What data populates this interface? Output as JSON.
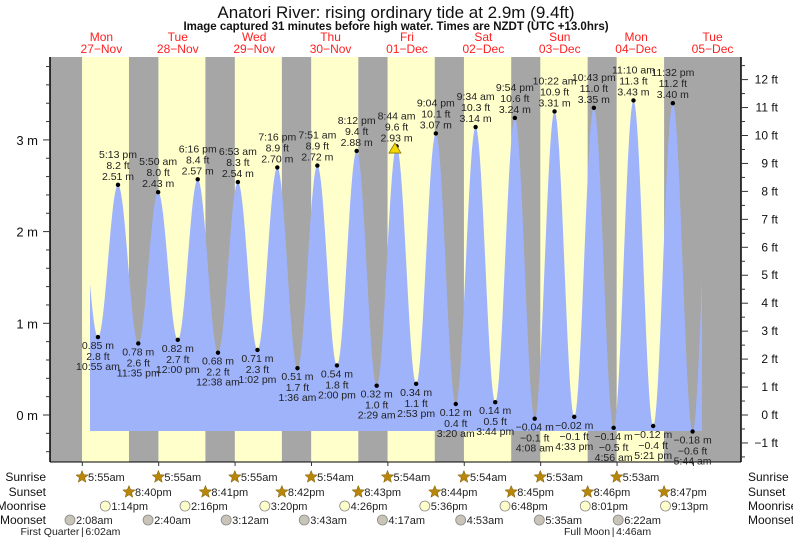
{
  "chart_data": {
    "type": "area",
    "title": "Anatori River: rising  ordinary tide at 2.9m (9.4ft)",
    "subtitle": "Image captured 31 minutes before high water. Times are NZDT (UTC +13.0hrs)",
    "left_axis": {
      "unit": "m",
      "ticks": [
        "0 m",
        "1 m",
        "2 m",
        "3 m"
      ],
      "range_m": [
        -0.5,
        3.9
      ]
    },
    "right_axis": {
      "unit": "ft",
      "ticks": [
        "−1 ft",
        "0 ft",
        "1 ft",
        "2 ft",
        "3 ft",
        "4 ft",
        "5 ft",
        "6 ft",
        "7 ft",
        "8 ft",
        "9 ft",
        "10 ft",
        "11 ft",
        "12 ft"
      ]
    },
    "days": [
      {
        "dow": "Mon",
        "date": "27−Nov"
      },
      {
        "dow": "Tue",
        "date": "28−Nov"
      },
      {
        "dow": "Wed",
        "date": "29−Nov"
      },
      {
        "dow": "Thu",
        "date": "30−Nov"
      },
      {
        "dow": "Fri",
        "date": "01−Dec"
      },
      {
        "dow": "Sat",
        "date": "02−Dec"
      },
      {
        "dow": "Sun",
        "date": "03−Dec"
      },
      {
        "dow": "Mon",
        "date": "04−Dec"
      },
      {
        "dow": "Tue",
        "date": "05−Dec"
      }
    ],
    "tides": [
      {
        "day": 0,
        "time": "10:55 am",
        "type": "low",
        "m": "0.85 m",
        "ft": "2.8 ft",
        "value": 0.85
      },
      {
        "day": 0,
        "time": "5:13 pm",
        "type": "high",
        "m": "2.51 m",
        "ft": "8.2 ft",
        "value": 2.51
      },
      {
        "day": 0,
        "time": "11:35 pm",
        "type": "low",
        "m": "0.78 m",
        "ft": "2.6 ft",
        "value": 0.78
      },
      {
        "day": 1,
        "time": "5:50 am",
        "type": "high",
        "m": "2.43 m",
        "ft": "8.0 ft",
        "value": 2.43
      },
      {
        "day": 1,
        "time": "12:00 pm",
        "type": "low",
        "m": "0.82 m",
        "ft": "2.7 ft",
        "value": 0.82
      },
      {
        "day": 1,
        "time": "6:16 pm",
        "type": "high",
        "m": "2.57 m",
        "ft": "8.4 ft",
        "value": 2.57
      },
      {
        "day": 2,
        "time": "12:38 am",
        "type": "low",
        "m": "0.68 m",
        "ft": "2.2 ft",
        "value": 0.68
      },
      {
        "day": 2,
        "time": "6:53 am",
        "type": "high",
        "m": "2.54 m",
        "ft": "8.3 ft",
        "value": 2.54
      },
      {
        "day": 2,
        "time": "1:02 pm",
        "type": "low",
        "m": "0.71 m",
        "ft": "2.3 ft",
        "value": 0.71
      },
      {
        "day": 2,
        "time": "7:16 pm",
        "type": "high",
        "m": "2.70 m",
        "ft": "8.9 ft",
        "value": 2.7
      },
      {
        "day": 3,
        "time": "1:36 am",
        "type": "low",
        "m": "0.51 m",
        "ft": "1.7 ft",
        "value": 0.51
      },
      {
        "day": 3,
        "time": "7:51 am",
        "type": "high",
        "m": "2.72 m",
        "ft": "8.9 ft",
        "value": 2.72
      },
      {
        "day": 3,
        "time": "2:00 pm",
        "type": "low",
        "m": "0.54 m",
        "ft": "1.8 ft",
        "value": 0.54
      },
      {
        "day": 3,
        "time": "8:12 pm",
        "type": "high",
        "m": "2.88 m",
        "ft": "9.4 ft",
        "value": 2.88
      },
      {
        "day": 4,
        "time": "2:29 am",
        "type": "low",
        "m": "0.32 m",
        "ft": "1.0 ft",
        "value": 0.32
      },
      {
        "day": 4,
        "time": "8:44 am",
        "type": "high",
        "m": "2.93 m",
        "ft": "9.6 ft",
        "value": 2.93
      },
      {
        "day": 4,
        "time": "2:53 pm",
        "type": "low",
        "m": "0.34 m",
        "ft": "1.1 ft",
        "value": 0.34
      },
      {
        "day": 4,
        "time": "9:04 pm",
        "type": "high",
        "m": "3.07 m",
        "ft": "10.1 ft",
        "value": 3.07
      },
      {
        "day": 5,
        "time": "3:20 am",
        "type": "low",
        "m": "0.12 m",
        "ft": "0.4 ft",
        "value": 0.12
      },
      {
        "day": 5,
        "time": "9:34 am",
        "type": "high",
        "m": "3.14 m",
        "ft": "10.3 ft",
        "value": 3.14
      },
      {
        "day": 5,
        "time": "3:44 pm",
        "type": "low",
        "m": "0.14 m",
        "ft": "0.5 ft",
        "value": 0.14
      },
      {
        "day": 5,
        "time": "9:54 pm",
        "type": "high",
        "m": "3.24 m",
        "ft": "10.6 ft",
        "value": 3.24
      },
      {
        "day": 6,
        "time": "4:08 am",
        "type": "low",
        "m": "−0.04 m",
        "ft": "−0.1 ft",
        "value": -0.04
      },
      {
        "day": 6,
        "time": "10:22 am",
        "type": "high",
        "m": "3.31 m",
        "ft": "10.9 ft",
        "value": 3.31
      },
      {
        "day": 6,
        "time": "4:33 pm",
        "type": "low",
        "m": "−0.02 m",
        "ft": "−0.1 ft",
        "value": -0.02
      },
      {
        "day": 6,
        "time": "10:43 pm",
        "type": "high",
        "m": "3.35 m",
        "ft": "11.0 ft",
        "value": 3.35
      },
      {
        "day": 7,
        "time": "4:56 am",
        "type": "low",
        "m": "−0.14 m",
        "ft": "−0.5 ft",
        "value": -0.14
      },
      {
        "day": 7,
        "time": "11:10 am",
        "type": "high",
        "m": "3.43 m",
        "ft": "11.3 ft",
        "value": 3.43
      },
      {
        "day": 7,
        "time": "5:21 pm",
        "type": "low",
        "m": "−0.12 m",
        "ft": "−0.4 ft",
        "value": -0.12
      },
      {
        "day": 7,
        "time": "11:32 pm",
        "type": "high",
        "m": "3.40 m",
        "ft": "11.2 ft",
        "value": 3.4
      },
      {
        "day": 8,
        "time": "5:44 am",
        "type": "low",
        "m": "−0.18 m",
        "ft": "−0.6 ft",
        "value": -0.18
      }
    ],
    "current": {
      "day": 4,
      "time": "8:13 am",
      "value": 2.9
    },
    "rows": {
      "labels": {
        "sunrise": "Sunrise",
        "sunset": "Sunset",
        "moonrise": "Moonrise",
        "moonset": "Moonset"
      },
      "sunrise": [
        "5:55am",
        "5:55am",
        "5:55am",
        "5:54am",
        "5:54am",
        "5:54am",
        "5:53am",
        "5:53am"
      ],
      "sunset": [
        "8:40pm",
        "8:41pm",
        "8:42pm",
        "8:43pm",
        "8:44pm",
        "8:45pm",
        "8:46pm",
        "8:47pm"
      ],
      "moonrise": [
        "1:14pm",
        "2:16pm",
        "3:20pm",
        "4:26pm",
        "5:36pm",
        "6:48pm",
        "8:01pm",
        "9:13pm"
      ],
      "moonset": [
        "2:08am",
        "2:40am",
        "3:12am",
        "3:43am",
        "4:17am",
        "4:53am",
        "5:35am",
        "6:22am"
      ]
    },
    "phases": [
      {
        "day": 0,
        "name": "First Quarter",
        "time": "6:02am"
      },
      {
        "day": 7,
        "name": "Full Moon",
        "time": "4:46am"
      }
    ],
    "colors": {
      "water": "#9fb3fb",
      "day": "#ffffcc",
      "night": "#a6a6a6",
      "date": "#ff2020",
      "sun": "#b8860b",
      "moonrise": "#ffffcc",
      "moonset": "#c8c4b8",
      "marker": "#f5d800"
    }
  }
}
